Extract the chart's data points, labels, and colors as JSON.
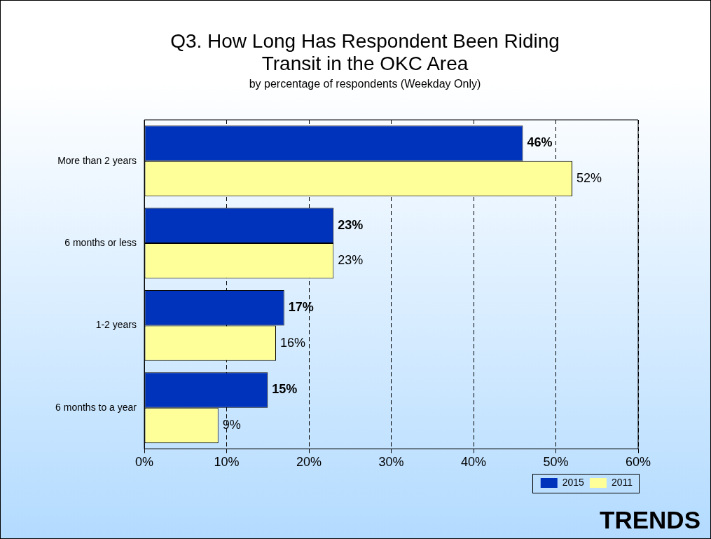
{
  "chart_data": {
    "type": "bar",
    "orientation": "horizontal",
    "title": "Q3. How Long Has Respondent Been Riding Transit in the OKC Area",
    "subtitle": "by percentage of respondents (Weekday Only)",
    "categories": [
      "More than 2 years",
      "6 months or less",
      "1-2 years",
      "6 months to a year"
    ],
    "series": [
      {
        "name": "2015",
        "color": "#0033bb",
        "values": [
          46,
          23,
          17,
          15
        ],
        "value_labels": [
          "46%",
          "23%",
          "17%",
          "15%"
        ]
      },
      {
        "name": "2011",
        "color": "#ffff99",
        "values": [
          52,
          23,
          16,
          9
        ],
        "value_labels": [
          "52%",
          "23%",
          "16%",
          "9%"
        ]
      }
    ],
    "xlim": [
      0,
      60
    ],
    "xticks": [
      {
        "value": 0,
        "label": "0%"
      },
      {
        "value": 10,
        "label": "10%"
      },
      {
        "value": 20,
        "label": "20%"
      },
      {
        "value": 30,
        "label": "30%"
      },
      {
        "value": 40,
        "label": "40%"
      },
      {
        "value": 50,
        "label": "50%"
      },
      {
        "value": 60,
        "label": "60%"
      }
    ],
    "grid": "x",
    "legend": "bottom right",
    "annotations": [
      "TRENDS"
    ]
  }
}
